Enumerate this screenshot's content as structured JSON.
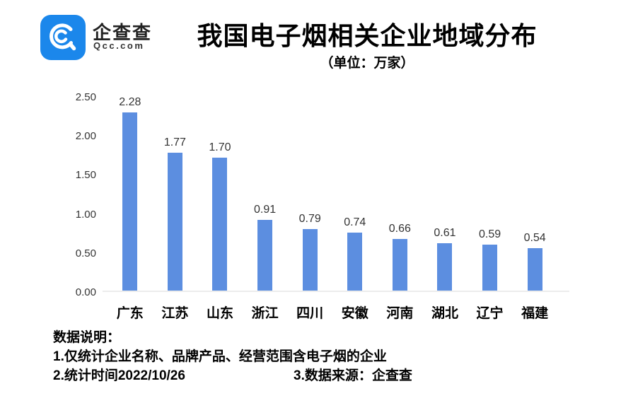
{
  "header": {
    "logo": {
      "brand_cn": "企查查",
      "brand_en": "Qcc.com",
      "brand_color": "#1B87EB"
    },
    "title": "我国电子烟相关企业地域分布",
    "subtitle": "（单位：万家）"
  },
  "chart_data": {
    "type": "bar",
    "title": "我国电子烟相关企业地域分布",
    "unit_label": "（单位：万家）",
    "categories": [
      "广东",
      "江苏",
      "山东",
      "浙江",
      "四川",
      "安徽",
      "河南",
      "湖北",
      "辽宁",
      "福建"
    ],
    "values": [
      2.28,
      1.77,
      1.7,
      0.91,
      0.79,
      0.74,
      0.66,
      0.61,
      0.59,
      0.54
    ],
    "value_labels": [
      "2.28",
      "1.77",
      "1.70",
      "0.91",
      "0.79",
      "0.74",
      "0.66",
      "0.61",
      "0.59",
      "0.54"
    ],
    "yticks": [
      "0.00",
      "0.50",
      "1.00",
      "1.50",
      "2.00",
      "2.50"
    ],
    "ytick_values": [
      0.0,
      0.5,
      1.0,
      1.5,
      2.0,
      2.5
    ],
    "ylim": [
      0,
      2.5
    ],
    "bar_color": "#5C8EE0",
    "axis_line_color": "#ececec",
    "grid": false,
    "legend": false
  },
  "footer": {
    "heading": "数据说明：",
    "note1": "1.仅统计企业名称、品牌产品、经营范围含电子烟的企业",
    "note2": "2.统计时间2022/10/26",
    "note3": "3.数据来源：企查查"
  }
}
